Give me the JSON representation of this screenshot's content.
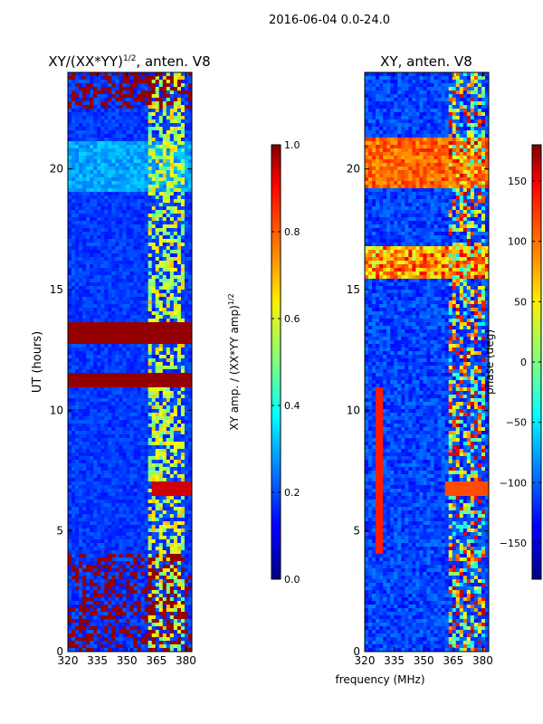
{
  "suptitle": "2016-06-04 0.0-24.0",
  "xlabel": "frequency (MHz)",
  "chart_data": [
    {
      "type": "heatmap",
      "title_main": "XY/(XX*YY)",
      "title_sup": "1/2",
      "title_tail": ", anten. V8",
      "ylabel": "UT (hours)",
      "xlim": [
        320,
        383
      ],
      "ylim": [
        0,
        24
      ],
      "xticks": [
        "320",
        "335",
        "350",
        "365",
        "380"
      ],
      "yticks": [
        "0",
        "5",
        "10",
        "15",
        "20"
      ],
      "colorbar": {
        "label_main": "XY amp. / (XX*YY amp)",
        "label_sup": "1/2",
        "range": [
          0.0,
          1.0
        ],
        "ticks": [
          "0.0",
          "0.2",
          "0.4",
          "0.6",
          "0.8",
          "1.0"
        ]
      }
    },
    {
      "type": "heatmap",
      "title": "XY, anten. V8",
      "ylabel": "",
      "xlim": [
        320,
        383
      ],
      "ylim": [
        0,
        24
      ],
      "xticks": [
        "320",
        "335",
        "350",
        "365",
        "380"
      ],
      "yticks": [
        "0",
        "5",
        "10",
        "15",
        "20"
      ],
      "colorbar": {
        "label": "phase (deg)",
        "range": [
          -180,
          180
        ],
        "ticks": [
          "-150",
          "-100",
          "-50",
          "0",
          "50",
          "100",
          "150"
        ]
      }
    }
  ]
}
